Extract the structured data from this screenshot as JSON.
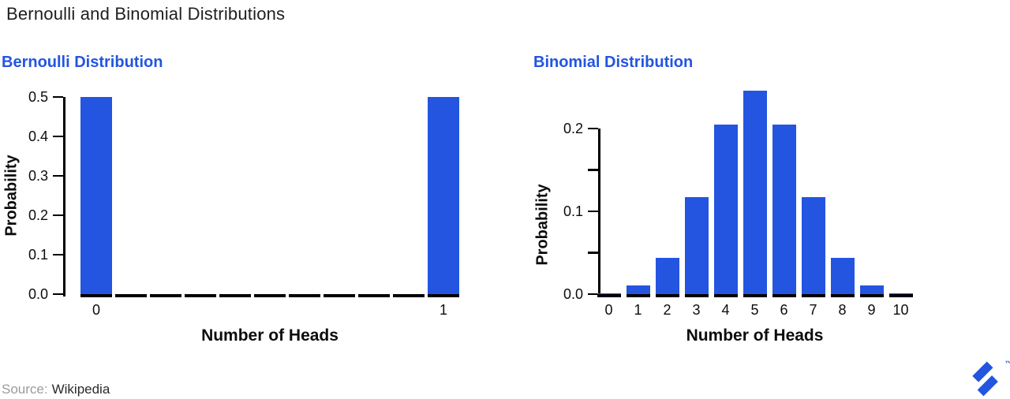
{
  "page": {
    "title": "Bernoulli and Binomial Distributions",
    "footer": {
      "source_label": "Source:",
      "source_value": "Wikipedia"
    }
  },
  "logo": {
    "name": "toptal-mark",
    "trademark": "™",
    "color": "#2355e0"
  },
  "colors": {
    "accent_blue": "#2355e0",
    "bar_blue": "#2355e0",
    "axis_black": "#000000",
    "title_text": "#1f1f1f",
    "source_gray": "#9b9b9b",
    "source_dark": "#2b2b2b"
  },
  "chart_data": [
    {
      "type": "bar",
      "title": "Bernoulli Distribution",
      "xlabel": "Number of Heads",
      "ylabel": "Probability",
      "categories": [
        "0",
        "",
        "",
        "",
        "",
        "",
        "",
        "",
        "",
        "",
        "1"
      ],
      "values": [
        0.5,
        0,
        0,
        0,
        0,
        0,
        0,
        0,
        0,
        0,
        0.5
      ],
      "ylim": [
        0,
        0.5
      ],
      "grid": false,
      "legend": "none",
      "yticks": [
        {
          "value": 0.0,
          "label": "0.0"
        },
        {
          "value": 0.1,
          "label": "0.1"
        },
        {
          "value": 0.2,
          "label": "0.2"
        },
        {
          "value": 0.3,
          "label": "0.3"
        },
        {
          "value": 0.4,
          "label": "0.4"
        },
        {
          "value": 0.5,
          "label": "0.5"
        }
      ]
    },
    {
      "type": "bar",
      "title": "Binomial Distribution",
      "xlabel": "Number of Heads",
      "ylabel": "Probability",
      "categories": [
        "0",
        "1",
        "2",
        "3",
        "4",
        "5",
        "6",
        "7",
        "8",
        "9",
        "10"
      ],
      "values": [
        0.001,
        0.01,
        0.044,
        0.117,
        0.205,
        0.246,
        0.205,
        0.117,
        0.044,
        0.01,
        0.001
      ],
      "ylim": [
        0,
        0.25
      ],
      "grid": false,
      "legend": "none",
      "yticks": [
        {
          "value": 0.0,
          "label": "0.0"
        },
        {
          "value": 0.05,
          "label": ""
        },
        {
          "value": 0.1,
          "label": "0.1"
        },
        {
          "value": 0.15,
          "label": ""
        },
        {
          "value": 0.2,
          "label": "0.2"
        }
      ]
    }
  ]
}
